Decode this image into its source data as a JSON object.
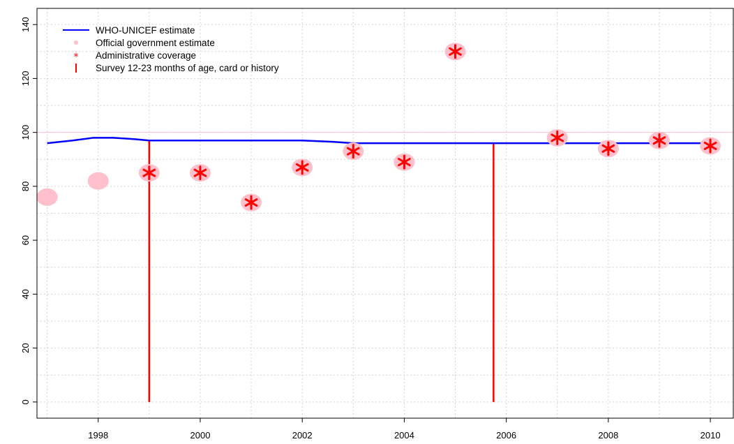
{
  "chart_data": {
    "type": "line",
    "title": "",
    "xlabel": "",
    "ylabel": "",
    "xlim": [
      1996.8,
      2010.45
    ],
    "ylim": [
      -6,
      146
    ],
    "x_ticks": [
      1998,
      2000,
      2002,
      2004,
      2006,
      2008,
      2010
    ],
    "y_ticks": [
      0,
      20,
      40,
      60,
      80,
      100,
      120,
      140
    ],
    "grid": true,
    "reference_line": {
      "y": 100,
      "color": "#ffc0cb"
    },
    "legend": {
      "position": "top-left",
      "entries": [
        {
          "label": "WHO-UNICEF estimate",
          "symbol": "line",
          "color": "#0000ff"
        },
        {
          "label": "Official government estimate",
          "symbol": "dot",
          "color": "#ffc0cb"
        },
        {
          "label": "Administrative coverage",
          "symbol": "asterisk",
          "color": "#ff0000"
        },
        {
          "label": "Survey 12-23 months of age, card or history",
          "symbol": "bar",
          "color": "#ff0000"
        }
      ]
    },
    "series": [
      {
        "name": "WHO-UNICEF estimate",
        "kind": "line",
        "color": "#0000ff",
        "points": [
          [
            1997,
            96
          ],
          [
            1997.5,
            97
          ],
          [
            1997.9,
            98
          ],
          [
            1998.3,
            98
          ],
          [
            1998.7,
            97.5
          ],
          [
            1999,
            97
          ],
          [
            2002,
            97
          ],
          [
            2002.6,
            96.5
          ],
          [
            2003,
            96
          ],
          [
            2010,
            96
          ]
        ]
      },
      {
        "name": "Official government estimate",
        "kind": "dot",
        "color": "#ffc0cb",
        "points": [
          [
            1997,
            76
          ],
          [
            1998,
            82
          ],
          [
            1999,
            85
          ],
          [
            2000,
            85
          ],
          [
            2001,
            74
          ],
          [
            2002,
            87
          ],
          [
            2003,
            93
          ],
          [
            2004,
            89
          ],
          [
            2005,
            130
          ],
          [
            2007,
            98
          ],
          [
            2008,
            94
          ],
          [
            2009,
            97
          ],
          [
            2010,
            95
          ]
        ]
      },
      {
        "name": "Administrative coverage",
        "kind": "asterisk",
        "color": "#ff0000",
        "points": [
          [
            1999,
            85
          ],
          [
            2000,
            85
          ],
          [
            2001,
            74
          ],
          [
            2002,
            87
          ],
          [
            2003,
            93
          ],
          [
            2004,
            89
          ],
          [
            2005,
            130
          ],
          [
            2007,
            98
          ],
          [
            2008,
            94
          ],
          [
            2009,
            97
          ],
          [
            2010,
            95
          ]
        ]
      },
      {
        "name": "Survey 12-23 months of age, card or history",
        "kind": "bar",
        "color": "#ff0000",
        "points": [
          [
            1999,
            97
          ],
          [
            2005.75,
            96
          ]
        ]
      }
    ]
  }
}
